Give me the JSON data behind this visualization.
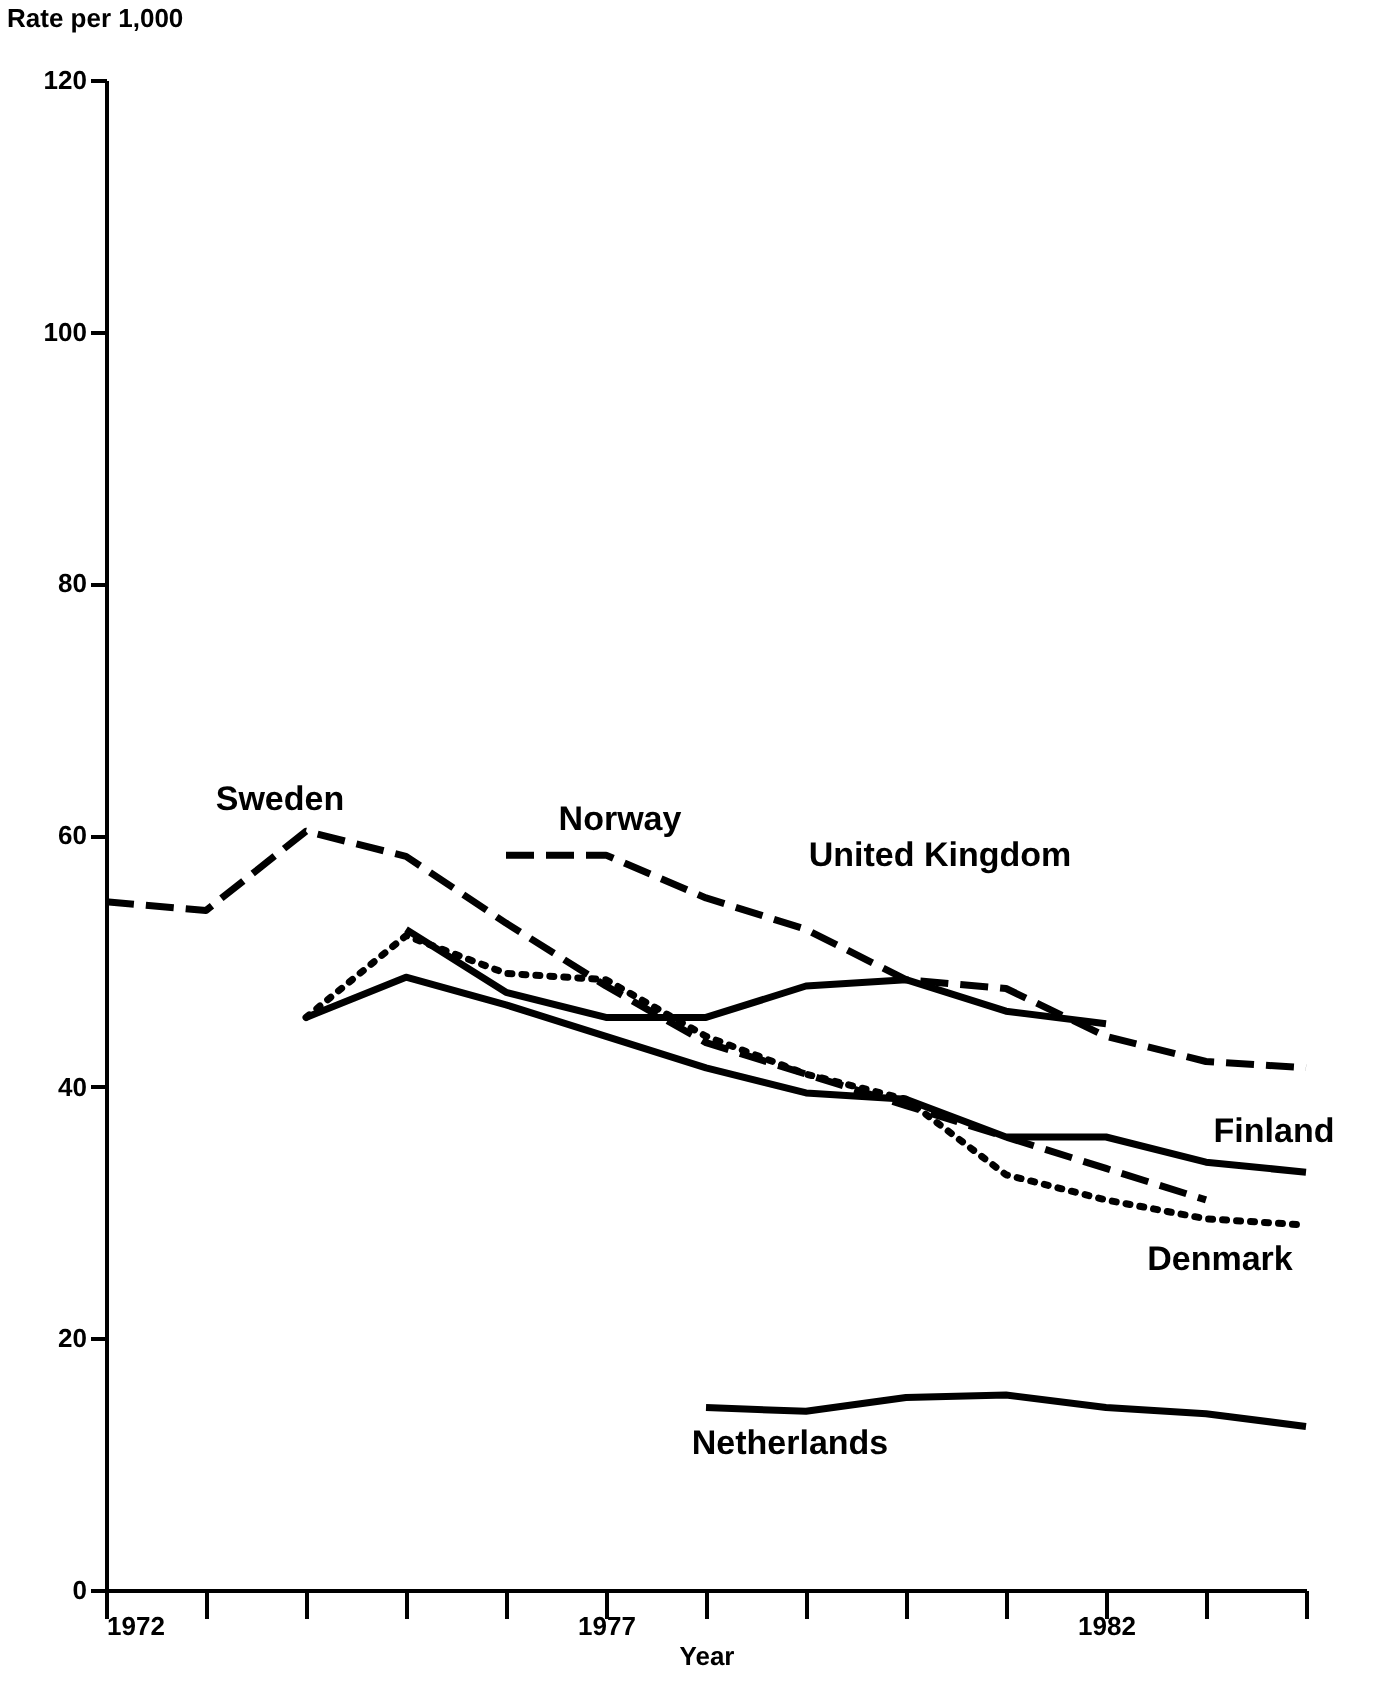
{
  "chart_data": {
    "type": "line",
    "xlabel": "Year",
    "ylabel": "Rate per 1,000",
    "x": [
      1972,
      1973,
      1974,
      1975,
      1976,
      1977,
      1978,
      1979,
      1980,
      1981,
      1982,
      1983,
      1984
    ],
    "series": [
      {
        "color": "#000000",
        "line_style": "dashed",
        "values": [
          54.7,
          54,
          60.3,
          58.3,
          53,
          48,
          43.5,
          41,
          38.5,
          36,
          33.5,
          31,
          null
        ]
      },
      {
        "color": "#000000",
        "line_style": "dashed",
        "values": [
          null,
          null,
          null,
          null,
          58.4,
          58.4,
          55,
          52.5,
          48.5,
          47.8,
          44,
          42,
          41.5
        ]
      },
      {
        "color": "#000000",
        "line_style": "solid",
        "values": [
          null,
          null,
          null,
          52.5,
          47.5,
          45.5,
          45.5,
          48,
          48.5,
          46,
          45,
          null,
          null
        ]
      },
      {
        "color": "#000000",
        "line_style": "solid",
        "values": [
          null,
          null,
          45.5,
          48.7,
          46.5,
          44,
          41.5,
          39.5,
          39,
          36,
          36,
          34,
          33.2
        ]
      },
      {
        "color": "#000000",
        "line_style": "dotted",
        "values": [
          null,
          null,
          45.5,
          52,
          49,
          48.5,
          44,
          41,
          39,
          33,
          31,
          29.5,
          29
        ]
      },
      {
        "color": "#000000",
        "line_style": "solid",
        "values": [
          null,
          null,
          null,
          null,
          null,
          null,
          14.5,
          14.2,
          15.3,
          15.5,
          14.5,
          14,
          13
        ]
      }
    ],
    "annotations": [
      "Sweden",
      "Norway",
      "United Kingdom",
      "Finland",
      "Denmark",
      "Netherlands"
    ],
    "xlim": [
      1972,
      1984
    ],
    "xticks": [
      1972,
      {
        "value": 1973,
        "label": null
      },
      {
        "value": 1974,
        "label": null
      },
      {
        "value": 1975,
        "label": null
      },
      {
        "value": 1976,
        "label": null
      },
      1977,
      {
        "value": 1978,
        "label": null
      },
      {
        "value": 1979,
        "label": null
      },
      {
        "value": 1980,
        "label": null
      },
      {
        "value": 1981,
        "label": null
      },
      1982,
      {
        "value": 1983,
        "label": null
      },
      {
        "value": 1984,
        "label": null
      }
    ],
    "ylim": [
      0,
      120
    ],
    "yticks": [
      0,
      20,
      40,
      60,
      80,
      100,
      120
    ],
    "grid": false
  }
}
